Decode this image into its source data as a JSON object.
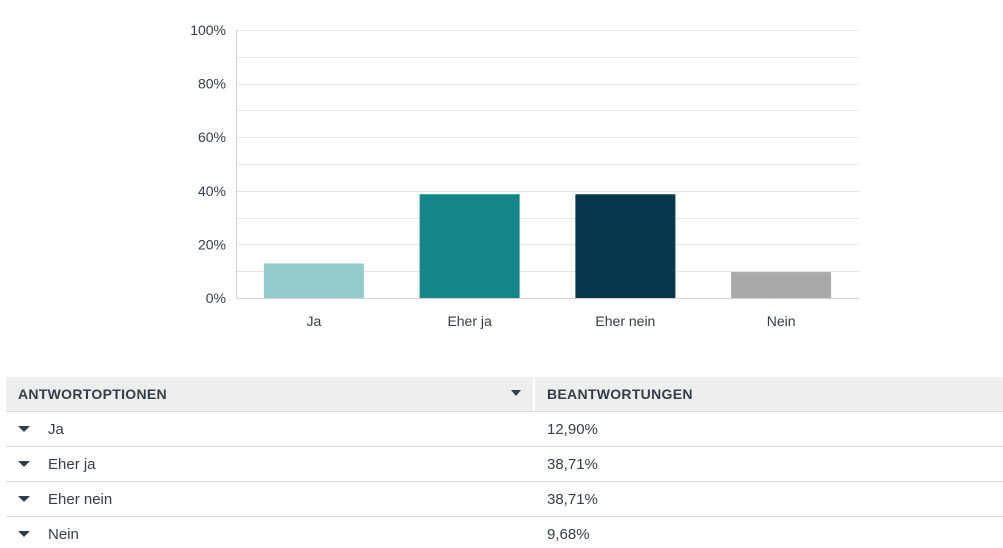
{
  "chart_data": {
    "type": "bar",
    "categories": [
      "Ja",
      "Eher ja",
      "Eher nein",
      "Nein"
    ],
    "values": [
      12.9,
      38.71,
      38.71,
      9.68
    ],
    "colors": [
      "#92cbca",
      "#12868a",
      "#06374b",
      "#a9a9a9"
    ],
    "ylim": [
      0,
      100
    ],
    "yticks": [
      "0%",
      "20%",
      "40%",
      "60%",
      "80%",
      "100%"
    ],
    "grid": true,
    "title": "",
    "xlabel": "",
    "ylabel": ""
  },
  "table": {
    "headers": {
      "options": "ANTWORTOPTIONEN",
      "responses": "BEANTWORTUNGEN"
    },
    "rows": [
      {
        "option": "Ja",
        "response": "12,90%"
      },
      {
        "option": "Eher ja",
        "response": "38,71%"
      },
      {
        "option": "Eher nein",
        "response": "38,71%"
      },
      {
        "option": "Nein",
        "response": "9,68%"
      }
    ]
  }
}
